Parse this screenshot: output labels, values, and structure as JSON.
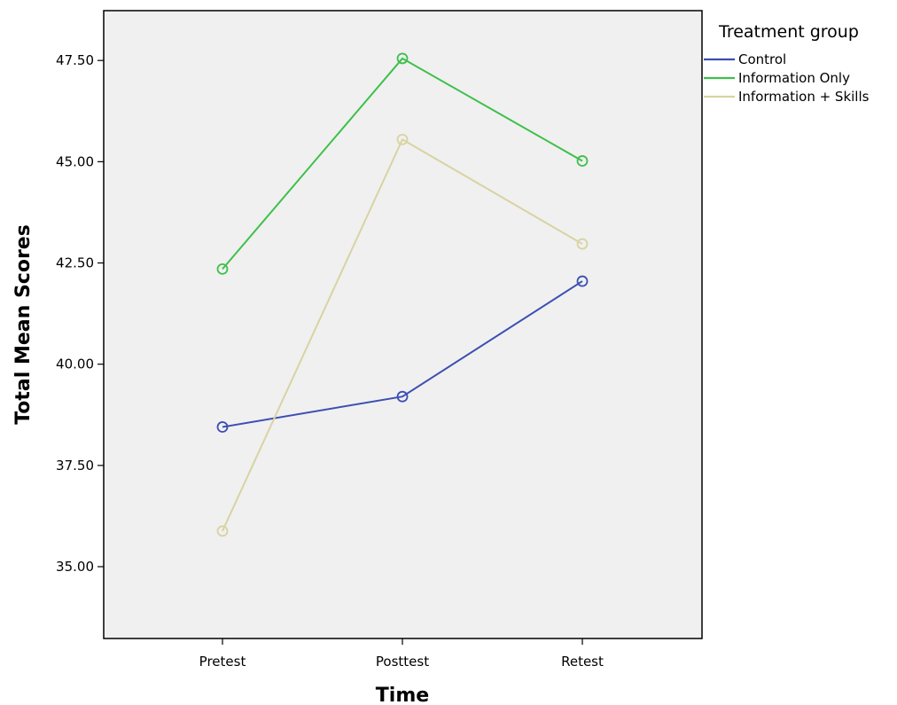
{
  "chart_data": {
    "type": "line",
    "title": "",
    "xlabel": "Time",
    "ylabel": "Total Mean Scores",
    "categories": [
      "Pretest",
      "Posttest",
      "Retest"
    ],
    "ylim": [
      33.2,
      48.8
    ],
    "yticks": [
      "35.00",
      "37.50",
      "40.00",
      "42.50",
      "45.00",
      "47.50"
    ],
    "grid": false,
    "marker": "open-circle",
    "plot_background": "#f0f0f0",
    "legend": {
      "title": "Treatment group",
      "placement": "right"
    },
    "series": [
      {
        "name": "Control",
        "color": "#3c4fb3",
        "values": [
          38.45,
          39.2,
          42.05
        ]
      },
      {
        "name": "Information Only",
        "color": "#3ec04a",
        "values": [
          42.35,
          47.55,
          45.02
        ]
      },
      {
        "name": "Information + Skills",
        "color": "#d8d3a2",
        "values": [
          35.88,
          45.55,
          42.97
        ]
      }
    ]
  }
}
